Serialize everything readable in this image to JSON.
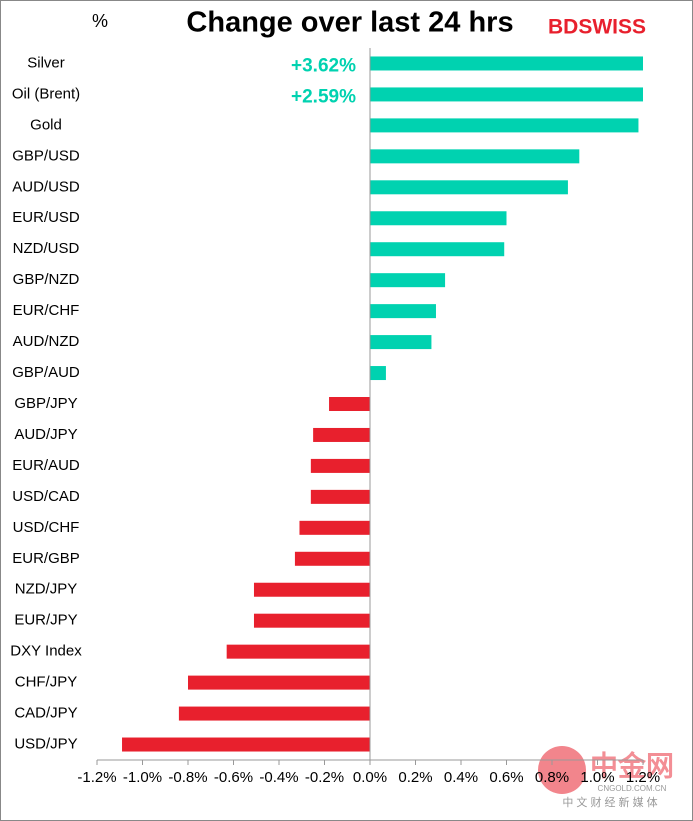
{
  "chart_data": {
    "type": "barh",
    "title": "Change over last 24 hrs",
    "unit_label": "%",
    "logo": "BDSWISS",
    "watermark": {
      "name": "中金网",
      "site": "CNGOLD.COM.CN",
      "tagline": "中 文 财 经 新 媒 体"
    },
    "categories": [
      "Silver",
      "Oil (Brent)",
      "Gold",
      "GBP/USD",
      "AUD/USD",
      "EUR/USD",
      "NZD/USD",
      "GBP/NZD",
      "EUR/CHF",
      "AUD/NZD",
      "GBP/AUD",
      "GBP/JPY",
      "AUD/JPY",
      "EUR/AUD",
      "USD/CAD",
      "USD/CHF",
      "EUR/GBP",
      "NZD/JPY",
      "EUR/JPY",
      "DXY Index",
      "CHF/JPY",
      "CAD/JPY",
      "USD/JPY"
    ],
    "values": [
      3.62,
      2.59,
      1.18,
      0.92,
      0.87,
      0.6,
      0.59,
      0.33,
      0.29,
      0.27,
      0.07,
      -0.18,
      -0.25,
      -0.26,
      -0.26,
      -0.31,
      -0.33,
      -0.51,
      -0.51,
      -0.63,
      -0.8,
      -0.84,
      -1.09
    ],
    "value_labels": [
      "+3.62%",
      "+2.59%",
      null,
      null,
      null,
      null,
      null,
      null,
      null,
      null,
      null,
      null,
      null,
      null,
      null,
      null,
      null,
      null,
      null,
      null,
      null,
      null,
      null
    ],
    "positive_color": "#00d2b0",
    "negative_color": "#e8202d",
    "xlim": [
      -1.2,
      1.2
    ],
    "xticks": [
      {
        "value": -1.2,
        "label": "-1.2%"
      },
      {
        "value": -1.0,
        "label": "-1.0%"
      },
      {
        "value": -0.8,
        "label": "-0.8%"
      },
      {
        "value": -0.6,
        "label": "-0.6%"
      },
      {
        "value": -0.4,
        "label": "-0.4%"
      },
      {
        "value": -0.2,
        "label": "-0.2%"
      },
      {
        "value": 0,
        "label": "0.0%"
      },
      {
        "value": 0.2,
        "label": "0.2%"
      },
      {
        "value": 0.4,
        "label": "0.4%"
      },
      {
        "value": 0.6,
        "label": "0.6%"
      },
      {
        "value": 0.8,
        "label": "0.8%"
      },
      {
        "value": 1.0,
        "label": "1.0%"
      },
      {
        "value": 1.2,
        "label": "1.2%"
      }
    ]
  }
}
